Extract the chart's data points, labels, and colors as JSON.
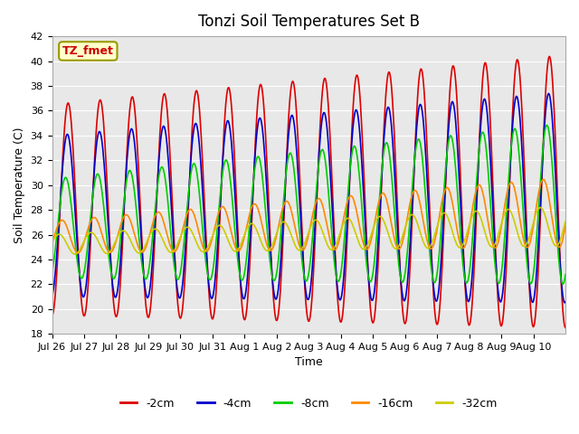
{
  "title": "Tonzi Soil Temperatures Set B",
  "xlabel": "Time",
  "ylabel": "Soil Temperature (C)",
  "annotation": "TZ_fmet",
  "ylim": [
    18,
    42
  ],
  "background_color": "#e8e8e8",
  "series_colors": {
    "-2cm": "#dd0000",
    "-4cm": "#0000cc",
    "-8cm": "#00cc00",
    "-16cm": "#ff8800",
    "-32cm": "#cccc00"
  },
  "xtick_labels": [
    "Jul 26",
    "Jul 27",
    "Jul 28",
    "Jul 29",
    "Jul 30",
    "Jul 31",
    "Aug 1",
    "Aug 2",
    "Aug 3",
    "Aug 4",
    "Aug 5",
    "Aug 6",
    "Aug 7",
    "Aug 8",
    "Aug 9",
    "Aug 10"
  ],
  "legend_order": [
    "-2cm",
    "-4cm",
    "-8cm",
    "-16cm",
    "-32cm"
  ]
}
